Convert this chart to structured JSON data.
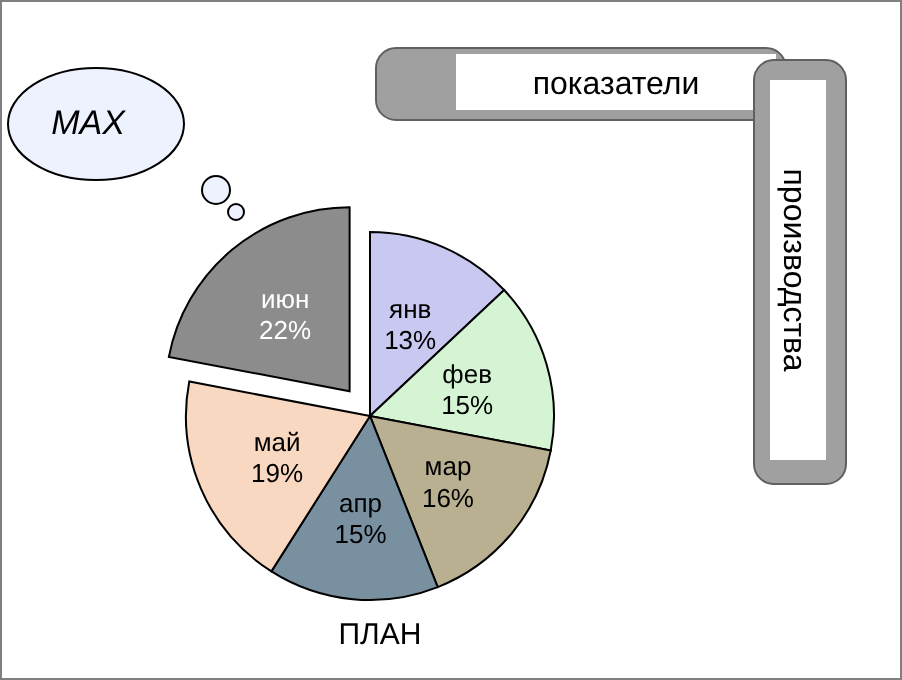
{
  "chart_data": {
    "type": "pie",
    "title": "ПЛАН",
    "categories": [
      "янв",
      "фев",
      "мар",
      "апр",
      "май",
      "июн"
    ],
    "values": [
      13,
      15,
      16,
      15,
      19,
      22
    ],
    "colors": [
      "#c8c8f0",
      "#d4f4d4",
      "#b8b090",
      "#7890a0",
      "#f8d8c0",
      "#8c8c8c"
    ],
    "value_labels": [
      "13%",
      "15%",
      "16%",
      "15%",
      "19%",
      "22%"
    ],
    "annotations": [
      "MAX",
      "показатели",
      "производства"
    ]
  }
}
